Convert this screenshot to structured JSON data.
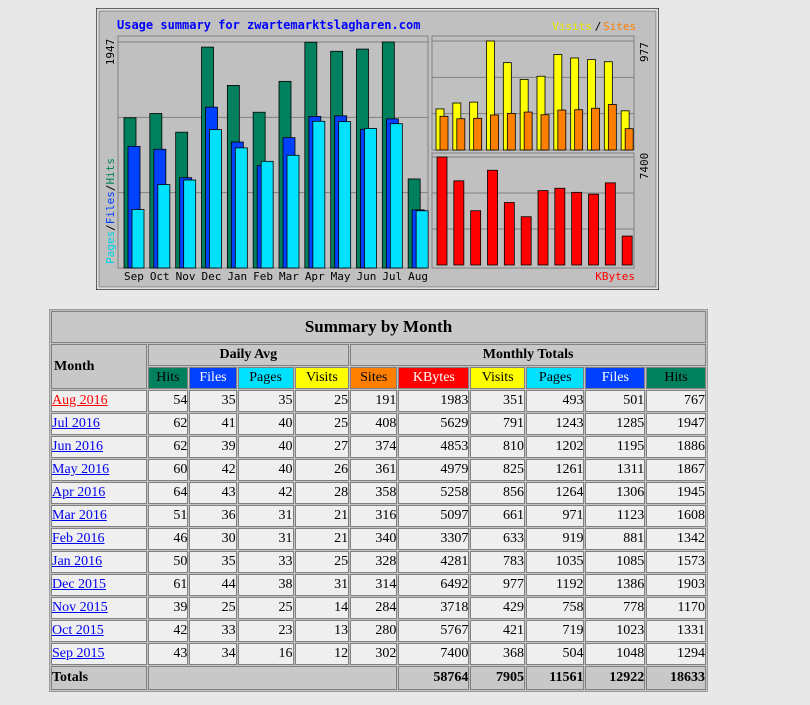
{
  "chart_data": {
    "type": "bar",
    "title": "Usage summary for zwartemarktslagharen.com",
    "categories": [
      "Sep",
      "Oct",
      "Nov",
      "Dec",
      "Jan",
      "Feb",
      "Mar",
      "Apr",
      "May",
      "Jun",
      "Jul",
      "Aug"
    ],
    "left_panel": {
      "axis_label_parts": [
        "Pages",
        "Files",
        "Hits"
      ],
      "max_label": "1947",
      "series": [
        {
          "name": "Hits",
          "color": "#00805c",
          "values": [
            1294,
            1331,
            1170,
            1903,
            1573,
            1342,
            1608,
            1945,
            1867,
            1886,
            1947,
            767
          ]
        },
        {
          "name": "Files",
          "color": "#0040ff",
          "values": [
            1048,
            1023,
            778,
            1386,
            1085,
            881,
            1123,
            1306,
            1311,
            1195,
            1285,
            501
          ]
        },
        {
          "name": "Pages",
          "color": "#00e0ff",
          "values": [
            504,
            719,
            758,
            1192,
            1035,
            919,
            971,
            1264,
            1261,
            1202,
            1243,
            493
          ]
        }
      ]
    },
    "top_right_panel": {
      "legend_parts": [
        "Visits",
        "Sites"
      ],
      "max_label": "977",
      "series": [
        {
          "name": "Visits",
          "color": "#ffff00",
          "values": [
            368,
            421,
            429,
            977,
            783,
            633,
            661,
            856,
            825,
            810,
            791,
            351
          ]
        },
        {
          "name": "Sites",
          "color": "#ff8000",
          "values": [
            302,
            280,
            284,
            314,
            328,
            340,
            316,
            358,
            361,
            374,
            408,
            191
          ]
        }
      ]
    },
    "bottom_right_panel": {
      "legend": "KBytes",
      "max_label": "7400",
      "series": [
        {
          "name": "KBytes",
          "color": "#ff0000",
          "values": [
            7400,
            5767,
            3718,
            6492,
            4281,
            3307,
            5097,
            5258,
            4979,
            4853,
            5629,
            1983
          ]
        }
      ]
    }
  },
  "table": {
    "title": "Summary by Month",
    "month_header": "Month",
    "daily_avg_header": "Daily Avg",
    "monthly_totals_header": "Monthly Totals",
    "daily_cols": [
      {
        "label": "Hits",
        "color": "#00805c"
      },
      {
        "label": "Files",
        "color": "#0040ff"
      },
      {
        "label": "Pages",
        "color": "#00e0ff"
      },
      {
        "label": "Visits",
        "color": "#ffff00"
      }
    ],
    "monthly_cols": [
      {
        "label": "Sites",
        "color": "#ff8000"
      },
      {
        "label": "KBytes",
        "color": "#ff0000"
      },
      {
        "label": "Visits",
        "color": "#ffff00"
      },
      {
        "label": "Pages",
        "color": "#00e0ff"
      },
      {
        "label": "Files",
        "color": "#0040ff"
      },
      {
        "label": "Hits",
        "color": "#00805c"
      }
    ],
    "rows": [
      {
        "month": "Aug 2016",
        "current": true,
        "daily": [
          "54",
          "35",
          "35",
          "25"
        ],
        "monthly": [
          "191",
          "1983",
          "351",
          "493",
          "501",
          "767"
        ]
      },
      {
        "month": "Jul 2016",
        "daily": [
          "62",
          "41",
          "40",
          "25"
        ],
        "monthly": [
          "408",
          "5629",
          "791",
          "1243",
          "1285",
          "1947"
        ]
      },
      {
        "month": "Jun 2016",
        "daily": [
          "62",
          "39",
          "40",
          "27"
        ],
        "monthly": [
          "374",
          "4853",
          "810",
          "1202",
          "1195",
          "1886"
        ]
      },
      {
        "month": "May 2016",
        "daily": [
          "60",
          "42",
          "40",
          "26"
        ],
        "monthly": [
          "361",
          "4979",
          "825",
          "1261",
          "1311",
          "1867"
        ]
      },
      {
        "month": "Apr 2016",
        "daily": [
          "64",
          "43",
          "42",
          "28"
        ],
        "monthly": [
          "358",
          "5258",
          "856",
          "1264",
          "1306",
          "1945"
        ]
      },
      {
        "month": "Mar 2016",
        "daily": [
          "51",
          "36",
          "31",
          "21"
        ],
        "monthly": [
          "316",
          "5097",
          "661",
          "971",
          "1123",
          "1608"
        ]
      },
      {
        "month": "Feb 2016",
        "daily": [
          "46",
          "30",
          "31",
          "21"
        ],
        "monthly": [
          "340",
          "3307",
          "633",
          "919",
          "881",
          "1342"
        ]
      },
      {
        "month": "Jan 2016",
        "daily": [
          "50",
          "35",
          "33",
          "25"
        ],
        "monthly": [
          "328",
          "4281",
          "783",
          "1035",
          "1085",
          "1573"
        ]
      },
      {
        "month": "Dec 2015",
        "daily": [
          "61",
          "44",
          "38",
          "31"
        ],
        "monthly": [
          "314",
          "6492",
          "977",
          "1192",
          "1386",
          "1903"
        ]
      },
      {
        "month": "Nov 2015",
        "daily": [
          "39",
          "25",
          "25",
          "14"
        ],
        "monthly": [
          "284",
          "3718",
          "429",
          "758",
          "778",
          "1170"
        ]
      },
      {
        "month": "Oct 2015",
        "daily": [
          "42",
          "33",
          "23",
          "13"
        ],
        "monthly": [
          "280",
          "5767",
          "421",
          "719",
          "1023",
          "1331"
        ]
      },
      {
        "month": "Sep 2015",
        "daily": [
          "43",
          "34",
          "16",
          "12"
        ],
        "monthly": [
          "302",
          "7400",
          "368",
          "504",
          "1048",
          "1294"
        ]
      }
    ],
    "totals_label": "Totals",
    "totals": [
      "58764",
      "7905",
      "11561",
      "12922",
      "18633"
    ]
  }
}
